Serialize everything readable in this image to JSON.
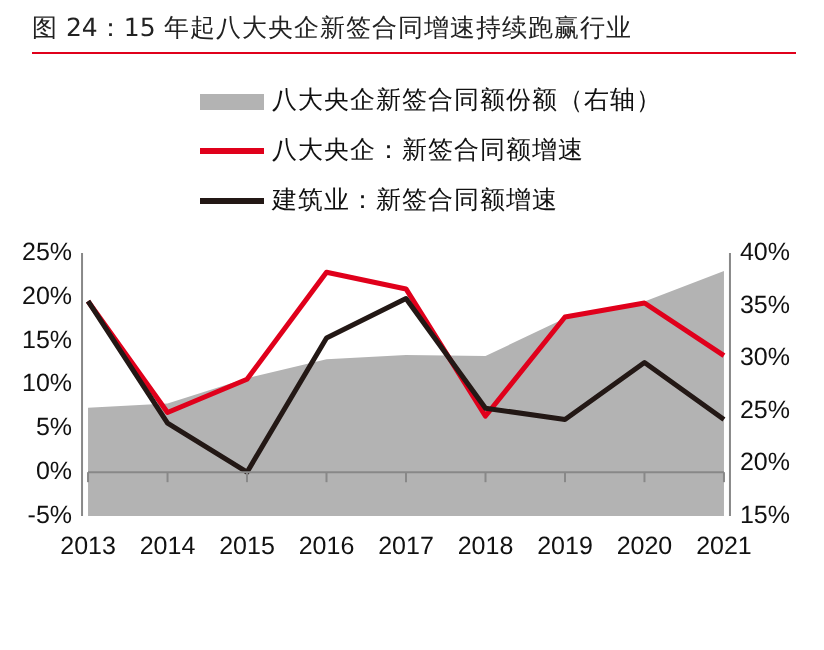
{
  "chart_data": {
    "type": "line",
    "title": "图 24：15 年起八大央企新签合同增速持续跑赢行业",
    "categories": [
      "2013",
      "2014",
      "2015",
      "2016",
      "2017",
      "2018",
      "2019",
      "2020",
      "2021"
    ],
    "series": [
      {
        "name": "八大央企新签合同额份额（右轴）",
        "type": "area",
        "axis": "y2",
        "color": "#b3b3b3",
        "values": [
          25.3,
          25.7,
          28.1,
          29.9,
          30.3,
          30.2,
          33.8,
          35.4,
          38.3
        ]
      },
      {
        "name": "八大央企：新签合同额增速",
        "color": "#e0001b",
        "values": [
          19.5,
          6.8,
          10.6,
          22.8,
          20.9,
          6.4,
          17.7,
          19.3,
          13.3
        ]
      },
      {
        "name": "建筑业：新签合同额增速",
        "color": "#231815",
        "values": [
          19.5,
          5.6,
          0,
          15.3,
          19.8,
          7.3,
          6.0,
          12.5,
          6.0
        ]
      }
    ],
    "ylim": [
      -5,
      25
    ],
    "yticks": [
      {
        "value": -5,
        "label": "-5%"
      },
      {
        "value": 0,
        "label": "0%"
      },
      {
        "value": 5,
        "label": "5%"
      },
      {
        "value": 10,
        "label": "10%"
      },
      {
        "value": 15,
        "label": "15%"
      },
      {
        "value": 20,
        "label": "20%"
      },
      {
        "value": 25,
        "label": "25%"
      }
    ],
    "y2lim": [
      15,
      40
    ],
    "y2ticks": [
      {
        "value": 15,
        "label": "15%"
      },
      {
        "value": 20,
        "label": "20%"
      },
      {
        "value": 25,
        "label": "25%"
      },
      {
        "value": 30,
        "label": "30%"
      },
      {
        "value": 35,
        "label": "35%"
      },
      {
        "value": 40,
        "label": "40%"
      }
    ],
    "legend": "top",
    "grid": false,
    "marker": "none",
    "line_style": "solid"
  }
}
